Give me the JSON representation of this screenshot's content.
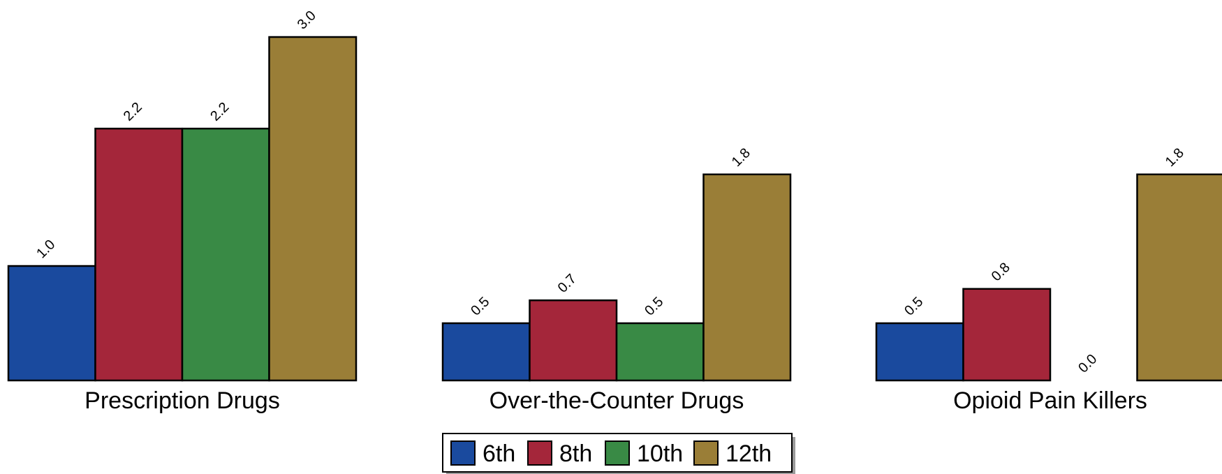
{
  "chart_data": {
    "type": "bar",
    "title": "",
    "xlabel": "",
    "ylabel": "",
    "ylim": [
      0,
      3.0
    ],
    "grid": false,
    "legend_placement": "bottom-center",
    "categories": [
      "Prescription Drugs",
      "Over-the-Counter Drugs",
      "Opioid Pain Killers"
    ],
    "series": [
      {
        "name": "6th",
        "color": "#1a4a9e",
        "values": [
          1.0,
          0.5,
          0.5
        ],
        "labels": [
          "1.0",
          "0.5",
          "0.5"
        ]
      },
      {
        "name": "8th",
        "color": "#a4263a",
        "values": [
          2.2,
          0.7,
          0.8
        ],
        "labels": [
          "2.2",
          "0.7",
          "0.8"
        ]
      },
      {
        "name": "10th",
        "color": "#398a45",
        "values": [
          2.2,
          0.5,
          0.0
        ],
        "labels": [
          "2.2",
          "0.5",
          "0.0"
        ]
      },
      {
        "name": "12th",
        "color": "#9a7e37",
        "values": [
          3.0,
          1.8,
          1.8
        ],
        "labels": [
          "3.0",
          "1.8",
          "1.8"
        ]
      }
    ]
  }
}
